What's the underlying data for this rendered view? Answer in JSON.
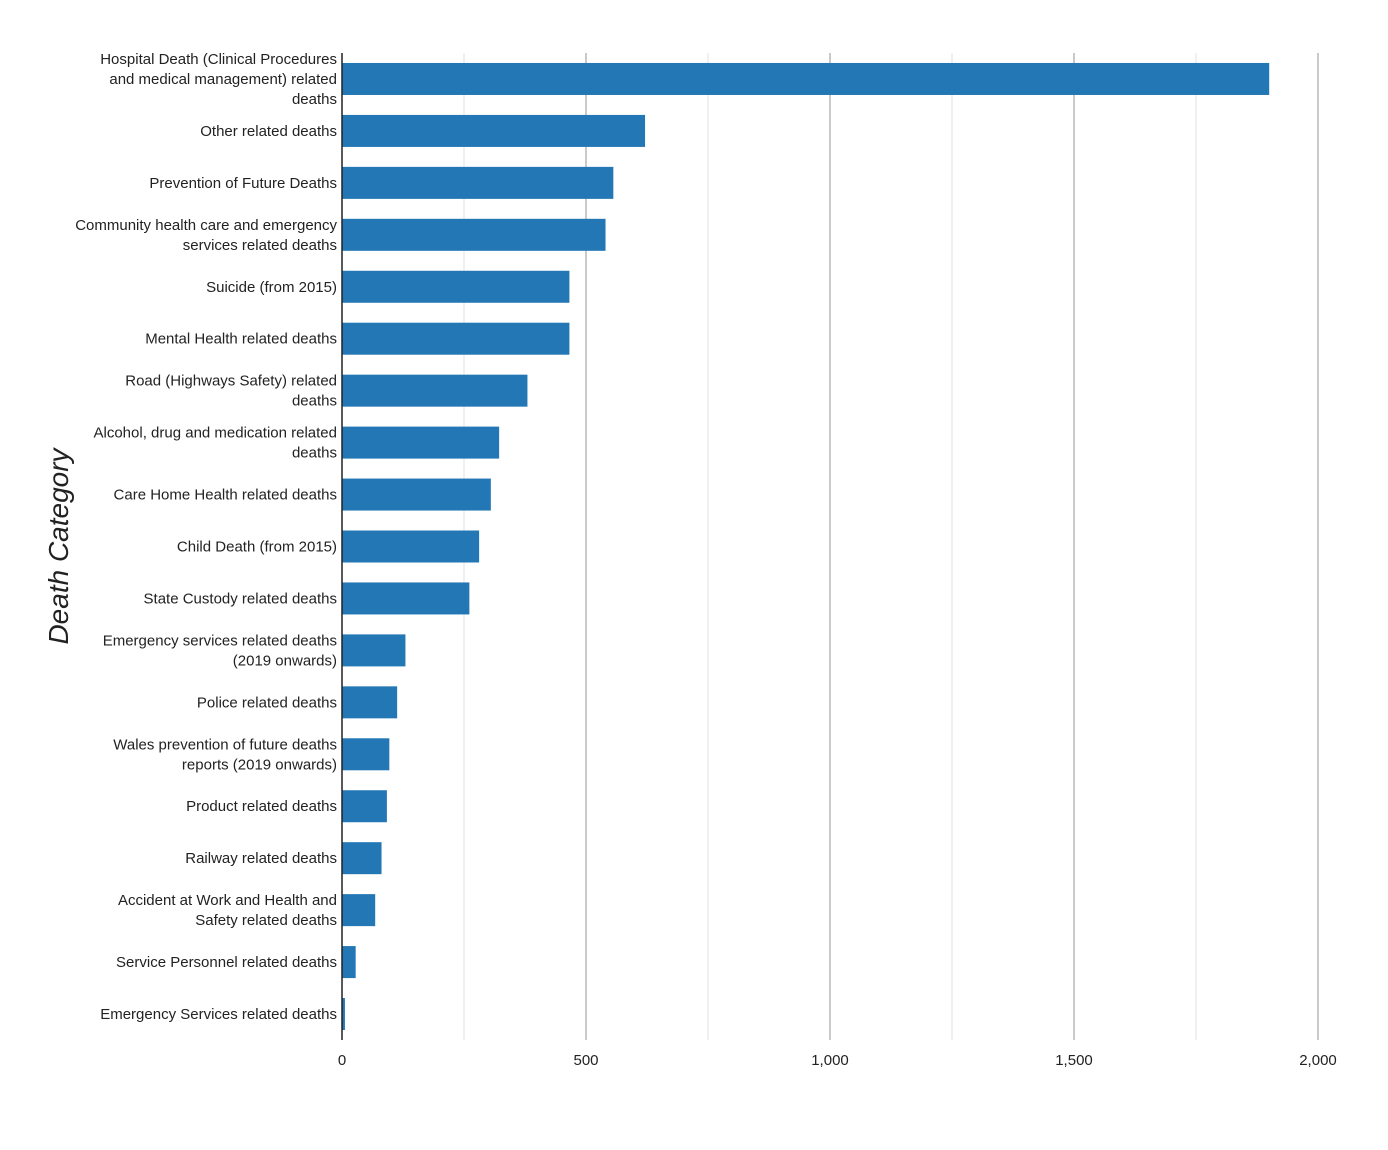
{
  "chart_data": {
    "type": "bar",
    "orientation": "horizontal",
    "ylabel": "Death Category",
    "xlabel": "",
    "xlim": [
      0,
      2000
    ],
    "x_ticks": [
      0,
      500,
      1000,
      1500,
      2000
    ],
    "x_tick_labels": [
      "0",
      "500",
      "1,000",
      "1,500",
      "2,000"
    ],
    "grid": true,
    "bar_color": "#2277b4",
    "categories": [
      "Hospital Death (Clinical Procedures and medical management) related deaths",
      "Other related deaths",
      "Prevention of Future Deaths",
      "Community health care and emergency services related deaths",
      "Suicide (from 2015)",
      "Mental Health related deaths",
      "Road (Highways Safety) related deaths",
      "Alcohol, drug and medication related deaths",
      "Care Home Health related deaths",
      "Child Death (from 2015)",
      "State Custody related deaths",
      "Emergency services related deaths (2019 onwards)",
      "Police related deaths",
      "Wales prevention of future deaths reports (2019 onwards)",
      "Product related deaths",
      "Railway related deaths",
      "Accident at Work and Health and Safety related deaths",
      "Service Personnel related deaths",
      "Emergency Services related deaths"
    ],
    "values": [
      1900,
      621,
      556,
      540,
      466,
      466,
      380,
      322,
      305,
      281,
      261,
      130,
      113,
      97,
      92,
      81,
      68,
      28,
      6
    ]
  }
}
